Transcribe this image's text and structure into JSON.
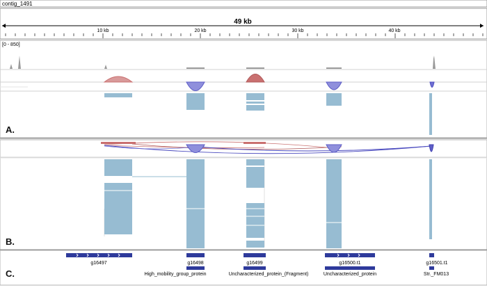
{
  "locus": {
    "name": "contig_1491",
    "span_label": "49 kb",
    "ticks": [
      "10 kb",
      "20 kb",
      "30 kb",
      "40 kb"
    ]
  },
  "tracks": {
    "coverage_range": "[0 - 850]",
    "panel_labels": [
      "A.",
      "B.",
      "C."
    ]
  },
  "genes": [
    {
      "name": "g16497"
    },
    {
      "name": "g16498",
      "product": "High_mobility_group_protein"
    },
    {
      "name": "g16499",
      "product": "Uncharacterized_protein_(Fragment)"
    },
    {
      "name": "g16500.t1",
      "product": "Uncharacterized_protein"
    },
    {
      "name": "g16501.t1",
      "product": "Str._FM013"
    }
  ],
  "colors": {
    "gene_blue": "#2e3a9b",
    "read_blue": "#97bcd2",
    "junction_red": "#c97070",
    "junction_blue": "#6f6fd2",
    "border": "#888888"
  }
}
